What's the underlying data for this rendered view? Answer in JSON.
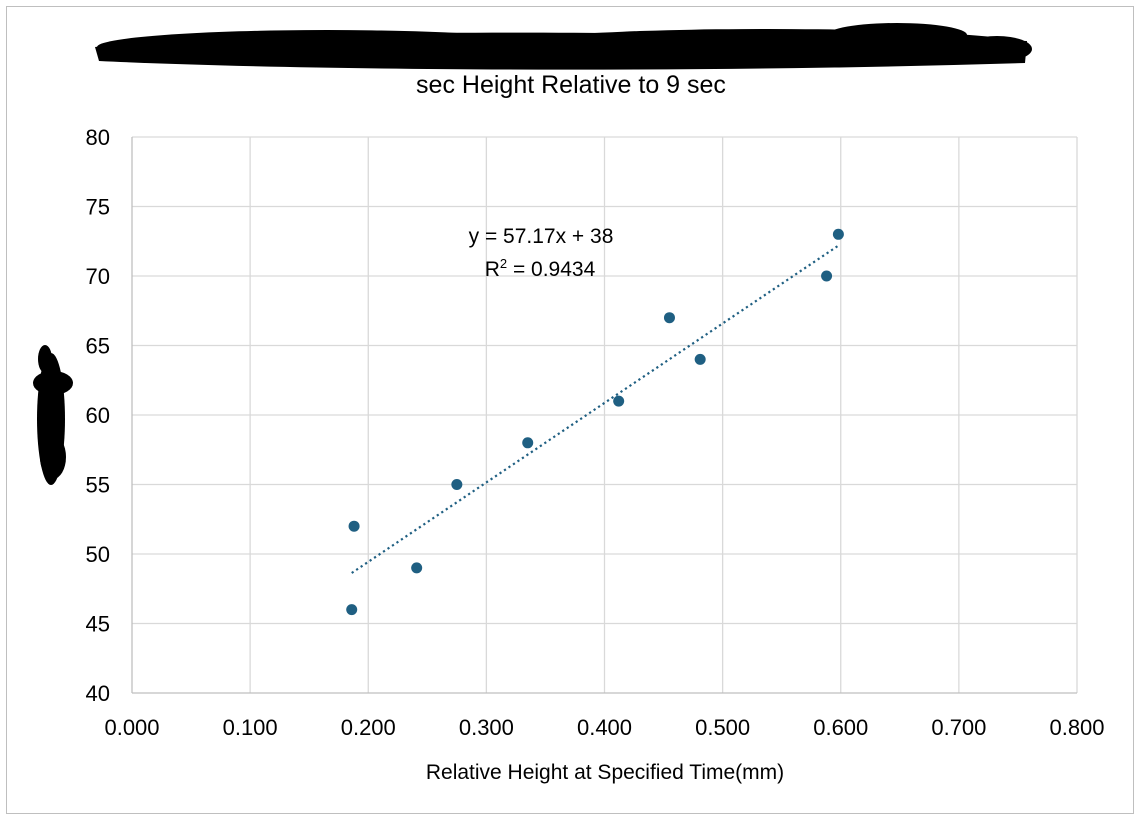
{
  "chart_data": {
    "type": "scatter",
    "title": "sec Height Relative to 9 sec",
    "xlabel": "Relative Height at Specified Time(mm)",
    "ylabel": "",
    "xlim": [
      0,
      0.8
    ],
    "ylim": [
      40,
      80
    ],
    "x_ticks": [
      "0.000",
      "0.100",
      "0.200",
      "0.300",
      "0.400",
      "0.500",
      "0.600",
      "0.700",
      "0.800"
    ],
    "y_ticks": [
      "40",
      "45",
      "50",
      "55",
      "60",
      "65",
      "70",
      "75",
      "80"
    ],
    "grid": true,
    "legend": "none",
    "marker_color": "#1f5f82",
    "trendline_color": "#1f5f82",
    "series": [
      {
        "x": [
          0.186,
          0.188,
          0.241,
          0.275,
          0.335,
          0.412,
          0.455,
          0.481,
          0.588,
          0.598
        ],
        "y": [
          46,
          52,
          49,
          55,
          58,
          61,
          67,
          64,
          70,
          73
        ]
      }
    ],
    "trendline": {
      "type": "linear",
      "slope": 57.17,
      "intercept": 38,
      "x_range": [
        0.186,
        0.598
      ],
      "equation": "y = 57.17x + 38",
      "r2_prefix": "R",
      "r2_sup": "2",
      "r2_value": " = 0.9434"
    },
    "redacted": [
      "title-prefix",
      "y-axis-title"
    ]
  }
}
